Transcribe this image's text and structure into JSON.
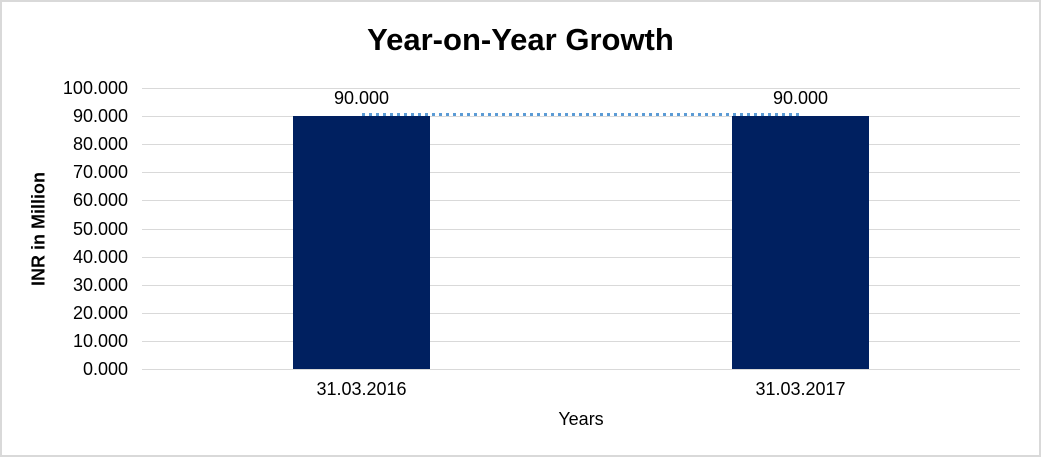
{
  "chart_data": {
    "type": "bar",
    "title": "Year-on-Year Growth",
    "xlabel": "Years",
    "ylabel": "INR in Million",
    "categories": [
      "31.03.2016",
      "31.03.2017"
    ],
    "series": [
      {
        "name": "bars",
        "type": "bar",
        "values": [
          90,
          90
        ],
        "color": "#002060"
      },
      {
        "name": "connector-line",
        "type": "line",
        "line_style": "dotted",
        "values": [
          90,
          90
        ],
        "color": "#5B9BD5"
      }
    ],
    "data_labels": [
      "90.000",
      "90.000"
    ],
    "ylim": [
      0,
      100
    ],
    "yticks": [
      {
        "value": 0,
        "label": "0.000"
      },
      {
        "value": 10,
        "label": "10.000"
      },
      {
        "value": 20,
        "label": "20.000"
      },
      {
        "value": 30,
        "label": "30.000"
      },
      {
        "value": 40,
        "label": "40.000"
      },
      {
        "value": 50,
        "label": "50.000"
      },
      {
        "value": 60,
        "label": "60.000"
      },
      {
        "value": 70,
        "label": "70.000"
      },
      {
        "value": 80,
        "label": "80.000"
      },
      {
        "value": 90,
        "label": "90.000"
      },
      {
        "value": 100,
        "label": "100.000"
      }
    ],
    "grid": true,
    "legend": "none"
  },
  "colors": {
    "bar": "#002060",
    "connector_line": "#5B9BD5",
    "gridline": "#D9D9D9",
    "chart_border": "#D9D9D9",
    "text": "#000000",
    "background": "#FFFFFF"
  }
}
